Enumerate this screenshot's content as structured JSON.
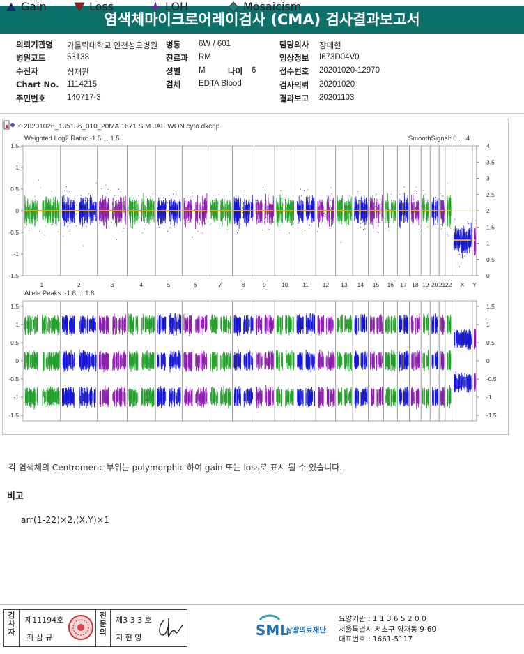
{
  "title": "염색체마이크로어레이검사 (CMA) 검사결과보고서",
  "info": {
    "hospital_label": "의뢰기관명",
    "hospital": "가톨릭대학교 인천성모병원",
    "ward_label": "병동",
    "ward": "6W / 601",
    "doctor_label": "담당의사",
    "doctor": "장대현",
    "code_label": "병원코드",
    "code": "53138",
    "dept_label": "진료과",
    "dept": "RM",
    "clinical_label": "임상정보",
    "clinical": "I673D04V0",
    "patient_label": "수진자",
    "patient": "심재원",
    "sex_label": "성별",
    "sex": "M",
    "age_label": "나이",
    "age": "6",
    "receipt_label": "접수번호",
    "receipt": "20201020-12970",
    "chart_label": "Chart No.",
    "chart": "1114215",
    "specimen_label": "검체",
    "specimen": "EDTA Blood",
    "request_label": "검사의뢰",
    "request": "20201020",
    "id_label": "주민번호",
    "id": "140717-3",
    "report_label": "결과보고",
    "report": "20201103"
  },
  "plot": {
    "filename": "20201026_135136_010_20MA 1671 SIM JAE WON.cyto.dxchp",
    "top_label": "Weighted Log2 Ratio: -1.5 ... 1.5",
    "smooth_label": "SmoothSignal: 0 ... 4",
    "bottom_label": "Allele Peaks: -1.8 ... 1.8",
    "left_ticks_top": [
      "1.5",
      "1",
      "0.5",
      "0",
      "-0.5",
      "-1",
      "-1.5"
    ],
    "right_ticks_top": [
      "4",
      "3.5",
      "3",
      "2.5",
      "2",
      "1.5",
      "1",
      "0.5",
      "0"
    ],
    "left_ticks_bottom": [
      "1.5",
      "1",
      "0.5",
      "0",
      "-0.5",
      "-1",
      "-1.5"
    ],
    "right_ticks_bottom": [
      "1.5",
      "1",
      "0.5",
      "0",
      "-0.5",
      "-1",
      "-1.5"
    ],
    "chromosomes": [
      "1",
      "2",
      "3",
      "4",
      "5",
      "6",
      "7",
      "8",
      "9",
      "10",
      "11",
      "12",
      "13",
      "14",
      "15",
      "16",
      "17",
      "18",
      "19",
      "20",
      "21",
      "22",
      "X",
      "Y"
    ],
    "colors": {
      "green": "#22a02a",
      "blue": "#1515d6",
      "purple": "#8c1fae",
      "smooth": "#e8b000"
    }
  },
  "legend": {
    "gain": "Gain",
    "loss": "Loss",
    "loh": "LOH",
    "mosaicism": "Mosaicism",
    "gain_color": "#1a2a6c",
    "loss_color": "#9b1b1b",
    "loh_color": "#6a2a9a",
    "mosaic_color": "#2a7a7a"
  },
  "note": "각 염색체의 Centromeric 부위는 polymorphic 하여 gain 또는 loss로 표시 될 수 있습니다.",
  "remarks_title": "비고",
  "karyotype": "arr(1-22)×2,(X,Y)×1",
  "sign": {
    "examiner_label": "검사자",
    "examiner_no": "제11194호",
    "examiner_name": "최 삼 규",
    "specialist_label": "전문의",
    "specialist_no": "제3 3 3 호",
    "specialist_name": "지 현 영"
  },
  "org": {
    "logo_text": "SML",
    "name": "삼광의료재단",
    "code_line": "요양기관 : 1 1 3 6 5 2 0 0",
    "address": "서울특별시 서초구 양재동 9-60",
    "phone": "대표번호 : 1661-5117"
  }
}
